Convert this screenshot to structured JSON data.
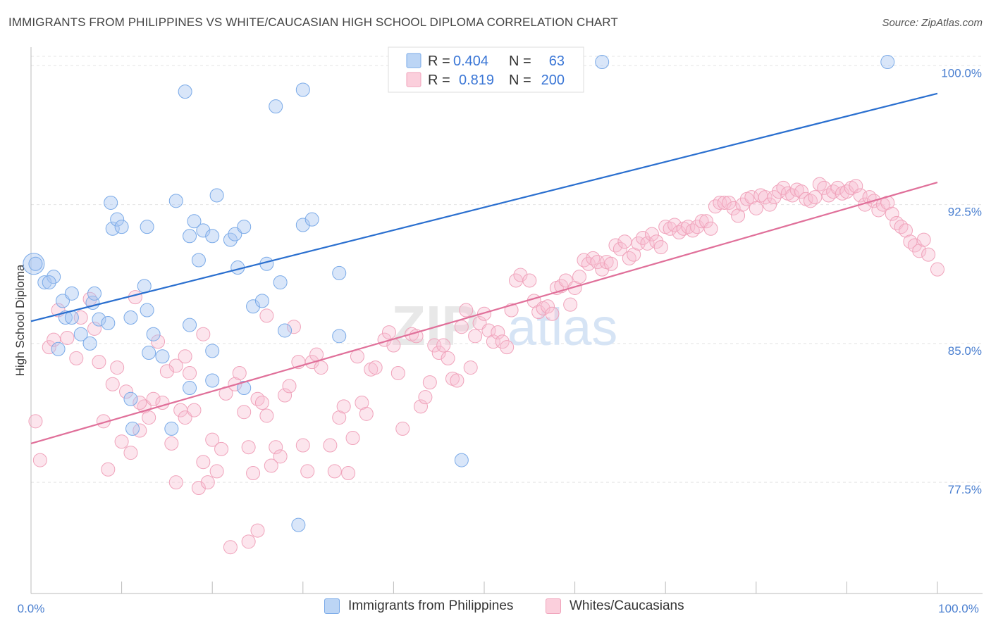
{
  "title": "IMMIGRANTS FROM PHILIPPINES VS WHITE/CAUCASIAN HIGH SCHOOL DIPLOMA CORRELATION CHART",
  "source": "Source: ZipAtlas.com",
  "watermark": {
    "zip": "ZIP",
    "atlas": "atlas"
  },
  "colors": {
    "blue": "#7aaae8",
    "blue_line": "#2a6fcf",
    "pink": "#f0a3bb",
    "pink_line": "#e0709a",
    "tick_text": "#4a7fd0"
  },
  "legend": {
    "rows": [
      {
        "r_label": "R =",
        "r_value": "0.404",
        "n_label": "N =",
        "n_value": "63"
      },
      {
        "r_label": "R =",
        "r_value": "0.819",
        "n_label": "N =",
        "n_value": "200"
      }
    ]
  },
  "bottom_legend": [
    "Immigrants from Philippines",
    "Whites/Caucasians"
  ],
  "chart_data": {
    "type": "scatter",
    "xlabel": "",
    "ylabel": "High School Diploma",
    "xlim": [
      0,
      100
    ],
    "ylim": [
      71.5,
      101.0
    ],
    "x_tick_labels": [
      "0.0%",
      "100.0%"
    ],
    "y_ticks": [
      {
        "value": 100.0,
        "label": "100.0%"
      },
      {
        "value": 92.5,
        "label": "92.5%"
      },
      {
        "value": 85.0,
        "label": "85.0%"
      },
      {
        "value": 77.5,
        "label": "77.5%"
      }
    ],
    "grid": true,
    "series": [
      {
        "name": "Immigrants from Philippines",
        "r": 0.404,
        "n": 63,
        "trend": {
          "x": [
            0,
            100
          ],
          "y": [
            86.2,
            98.5
          ]
        },
        "points": [
          [
            0.3,
            89.3
          ],
          [
            0.5,
            89.3
          ],
          [
            1.5,
            88.3
          ],
          [
            2.5,
            88.6
          ],
          [
            2.0,
            88.3
          ],
          [
            3.5,
            87.3
          ],
          [
            4.5,
            87.7
          ],
          [
            6.8,
            87.2
          ],
          [
            7.0,
            87.7
          ],
          [
            3.8,
            86.4
          ],
          [
            4.5,
            86.4
          ],
          [
            7.5,
            86.3
          ],
          [
            8.5,
            86.1
          ],
          [
            11.0,
            86.4
          ],
          [
            12.5,
            88.1
          ],
          [
            12.8,
            86.8
          ],
          [
            3.0,
            84.7
          ],
          [
            6.5,
            85.0
          ],
          [
            5.5,
            85.5
          ],
          [
            13.5,
            85.5
          ],
          [
            13.0,
            84.5
          ],
          [
            14.5,
            84.3
          ],
          [
            17.5,
            86.0
          ],
          [
            20.0,
            84.6
          ],
          [
            20.0,
            83.0
          ],
          [
            8.8,
            92.6
          ],
          [
            9.0,
            91.2
          ],
          [
            9.5,
            91.7
          ],
          [
            10.0,
            91.3
          ],
          [
            12.8,
            91.3
          ],
          [
            16.0,
            92.7
          ],
          [
            17.5,
            90.8
          ],
          [
            18.0,
            91.6
          ],
          [
            19.0,
            91.1
          ],
          [
            20.0,
            90.8
          ],
          [
            20.5,
            93.0
          ],
          [
            22.0,
            90.6
          ],
          [
            22.5,
            90.9
          ],
          [
            22.8,
            89.1
          ],
          [
            23.5,
            91.3
          ],
          [
            18.5,
            89.5
          ],
          [
            24.5,
            87.0
          ],
          [
            25.5,
            87.3
          ],
          [
            26.0,
            89.3
          ],
          [
            27.5,
            88.3
          ],
          [
            28.0,
            85.7
          ],
          [
            30.0,
            91.4
          ],
          [
            31.0,
            91.7
          ],
          [
            34.0,
            88.8
          ],
          [
            34.0,
            85.4
          ],
          [
            11.0,
            82.0
          ],
          [
            11.2,
            80.4
          ],
          [
            15.5,
            80.4
          ],
          [
            17.5,
            82.6
          ],
          [
            23.5,
            82.6
          ],
          [
            17.0,
            98.6
          ],
          [
            27.0,
            97.8
          ],
          [
            30.0,
            98.7
          ],
          [
            60.0,
            100.2
          ],
          [
            63.0,
            100.2
          ],
          [
            94.5,
            100.2
          ],
          [
            47.5,
            78.7
          ],
          [
            29.5,
            75.2
          ]
        ]
      },
      {
        "name": "Whites/Caucasians",
        "r": 0.819,
        "n": 200,
        "trend": {
          "x": [
            0,
            100
          ],
          "y": [
            79.6,
            93.7
          ]
        },
        "points": [
          [
            0.5,
            80.8
          ],
          [
            1.0,
            78.7
          ],
          [
            2.0,
            84.8
          ],
          [
            2.5,
            85.2
          ],
          [
            3.0,
            86.8
          ],
          [
            4.0,
            85.3
          ],
          [
            5.0,
            84.2
          ],
          [
            5.5,
            86.4
          ],
          [
            6.5,
            87.4
          ],
          [
            7.0,
            85.8
          ],
          [
            7.5,
            84.0
          ],
          [
            8.0,
            80.8
          ],
          [
            8.5,
            78.2
          ],
          [
            9.0,
            82.8
          ],
          [
            9.5,
            83.7
          ],
          [
            10.0,
            79.7
          ],
          [
            10.5,
            82.4
          ],
          [
            11.0,
            79.1
          ],
          [
            11.5,
            87.5
          ],
          [
            12.0,
            80.3
          ],
          [
            12.5,
            81.6
          ],
          [
            13.0,
            81.0
          ],
          [
            13.5,
            82.0
          ],
          [
            14.0,
            85.1
          ],
          [
            14.5,
            81.8
          ],
          [
            15.5,
            79.6
          ],
          [
            16.0,
            83.8
          ],
          [
            16.5,
            81.4
          ],
          [
            17.0,
            81.0
          ],
          [
            17.5,
            83.4
          ],
          [
            18.0,
            81.4
          ],
          [
            18.5,
            77.2
          ],
          [
            19.0,
            78.6
          ],
          [
            19.5,
            77.5
          ],
          [
            20.0,
            79.8
          ],
          [
            20.5,
            78.1
          ],
          [
            21.5,
            82.3
          ],
          [
            22.5,
            82.8
          ],
          [
            23.0,
            83.4
          ],
          [
            23.5,
            81.3
          ],
          [
            24.0,
            79.4
          ],
          [
            24.5,
            78.0
          ],
          [
            25.0,
            82.0
          ],
          [
            25.5,
            81.8
          ],
          [
            26.0,
            81.1
          ],
          [
            26.5,
            78.4
          ],
          [
            27.0,
            79.4
          ],
          [
            27.5,
            78.9
          ],
          [
            28.0,
            82.2
          ],
          [
            28.5,
            82.7
          ],
          [
            29.0,
            85.9
          ],
          [
            29.5,
            84.0
          ],
          [
            30.0,
            79.5
          ],
          [
            30.5,
            78.1
          ],
          [
            31.0,
            84.0
          ],
          [
            31.5,
            84.4
          ],
          [
            32.0,
            83.7
          ],
          [
            33.0,
            79.5
          ],
          [
            33.5,
            78.1
          ],
          [
            34.0,
            81.0
          ],
          [
            34.5,
            81.6
          ],
          [
            35.0,
            78.0
          ],
          [
            35.5,
            79.9
          ],
          [
            36.0,
            84.3
          ],
          [
            36.5,
            81.8
          ],
          [
            37.0,
            81.2
          ],
          [
            37.5,
            83.6
          ],
          [
            38.0,
            83.7
          ],
          [
            39.0,
            85.2
          ],
          [
            39.5,
            85.6
          ],
          [
            40.0,
            84.9
          ],
          [
            40.5,
            83.4
          ],
          [
            41.0,
            80.4
          ],
          [
            42.0,
            85.5
          ],
          [
            42.5,
            85.4
          ],
          [
            43.0,
            81.6
          ],
          [
            43.5,
            82.1
          ],
          [
            44.0,
            82.9
          ],
          [
            44.5,
            84.9
          ],
          [
            45.0,
            84.5
          ],
          [
            45.5,
            84.9
          ],
          [
            46.0,
            84.2
          ],
          [
            46.5,
            83.1
          ],
          [
            47.0,
            83.0
          ],
          [
            47.5,
            85.9
          ],
          [
            48.0,
            86.8
          ],
          [
            48.5,
            83.7
          ],
          [
            49.0,
            85.4
          ],
          [
            49.5,
            86.1
          ],
          [
            50.0,
            86.6
          ],
          [
            50.5,
            85.7
          ],
          [
            51.0,
            85.1
          ],
          [
            51.5,
            85.6
          ],
          [
            52.0,
            85.1
          ],
          [
            52.5,
            84.8
          ],
          [
            53.0,
            86.8
          ],
          [
            53.5,
            88.4
          ],
          [
            54.0,
            88.7
          ],
          [
            55.0,
            88.4
          ],
          [
            55.5,
            87.3
          ],
          [
            56.0,
            86.7
          ],
          [
            56.5,
            86.9
          ],
          [
            57.0,
            87.0
          ],
          [
            57.5,
            86.6
          ],
          [
            58.0,
            88.0
          ],
          [
            58.5,
            88.1
          ],
          [
            59.0,
            88.4
          ],
          [
            59.5,
            87.1
          ],
          [
            60.0,
            88.0
          ],
          [
            60.5,
            88.6
          ],
          [
            61.0,
            89.5
          ],
          [
            61.5,
            89.3
          ],
          [
            62.0,
            89.6
          ],
          [
            62.5,
            89.4
          ],
          [
            63.0,
            89.0
          ],
          [
            63.5,
            89.4
          ],
          [
            64.0,
            89.3
          ],
          [
            64.5,
            90.3
          ],
          [
            65.0,
            90.1
          ],
          [
            65.5,
            90.5
          ],
          [
            66.0,
            89.6
          ],
          [
            66.5,
            89.8
          ],
          [
            67.0,
            90.4
          ],
          [
            67.5,
            90.7
          ],
          [
            68.0,
            90.4
          ],
          [
            68.5,
            90.9
          ],
          [
            69.0,
            90.5
          ],
          [
            69.5,
            90.2
          ],
          [
            70.0,
            91.3
          ],
          [
            70.5,
            91.2
          ],
          [
            71.0,
            91.4
          ],
          [
            71.5,
            91.0
          ],
          [
            72.0,
            91.2
          ],
          [
            72.5,
            91.3
          ],
          [
            73.0,
            91.1
          ],
          [
            73.5,
            91.3
          ],
          [
            74.0,
            91.6
          ],
          [
            74.5,
            91.6
          ],
          [
            75.0,
            91.2
          ],
          [
            75.5,
            92.4
          ],
          [
            76.0,
            92.6
          ],
          [
            76.5,
            92.6
          ],
          [
            77.0,
            92.6
          ],
          [
            77.5,
            92.3
          ],
          [
            78.0,
            91.9
          ],
          [
            78.5,
            92.5
          ],
          [
            79.0,
            92.8
          ],
          [
            79.5,
            92.9
          ],
          [
            80.0,
            92.3
          ],
          [
            80.5,
            93.0
          ],
          [
            81.0,
            92.9
          ],
          [
            81.5,
            92.5
          ],
          [
            82.0,
            92.9
          ],
          [
            82.5,
            93.2
          ],
          [
            83.0,
            93.4
          ],
          [
            83.5,
            93.1
          ],
          [
            84.0,
            93.0
          ],
          [
            84.5,
            93.3
          ],
          [
            85.0,
            93.2
          ],
          [
            85.5,
            92.8
          ],
          [
            86.0,
            92.7
          ],
          [
            86.5,
            92.9
          ],
          [
            87.0,
            93.6
          ],
          [
            87.5,
            93.4
          ],
          [
            88.0,
            93.0
          ],
          [
            88.5,
            93.2
          ],
          [
            89.0,
            93.4
          ],
          [
            89.5,
            93.1
          ],
          [
            90.0,
            93.2
          ],
          [
            90.5,
            93.4
          ],
          [
            91.0,
            93.5
          ],
          [
            91.5,
            93.0
          ],
          [
            92.0,
            92.5
          ],
          [
            92.5,
            92.9
          ],
          [
            93.0,
            92.7
          ],
          [
            93.5,
            92.2
          ],
          [
            94.0,
            92.5
          ],
          [
            94.5,
            92.6
          ],
          [
            95.0,
            92.0
          ],
          [
            95.5,
            91.5
          ],
          [
            96.0,
            91.3
          ],
          [
            96.5,
            91.1
          ],
          [
            97.0,
            90.5
          ],
          [
            97.5,
            90.3
          ],
          [
            98.0,
            90.0
          ],
          [
            98.5,
            90.6
          ],
          [
            99.0,
            89.8
          ],
          [
            100.0,
            89.0
          ],
          [
            22.0,
            74.0
          ],
          [
            24.0,
            74.3
          ],
          [
            25.0,
            74.9
          ],
          [
            16.0,
            77.5
          ],
          [
            21.0,
            79.3
          ],
          [
            12.0,
            81.8
          ],
          [
            15.0,
            83.5
          ],
          [
            17.0,
            84.3
          ],
          [
            19.0,
            85.5
          ],
          [
            26.0,
            86.5
          ]
        ]
      }
    ]
  }
}
